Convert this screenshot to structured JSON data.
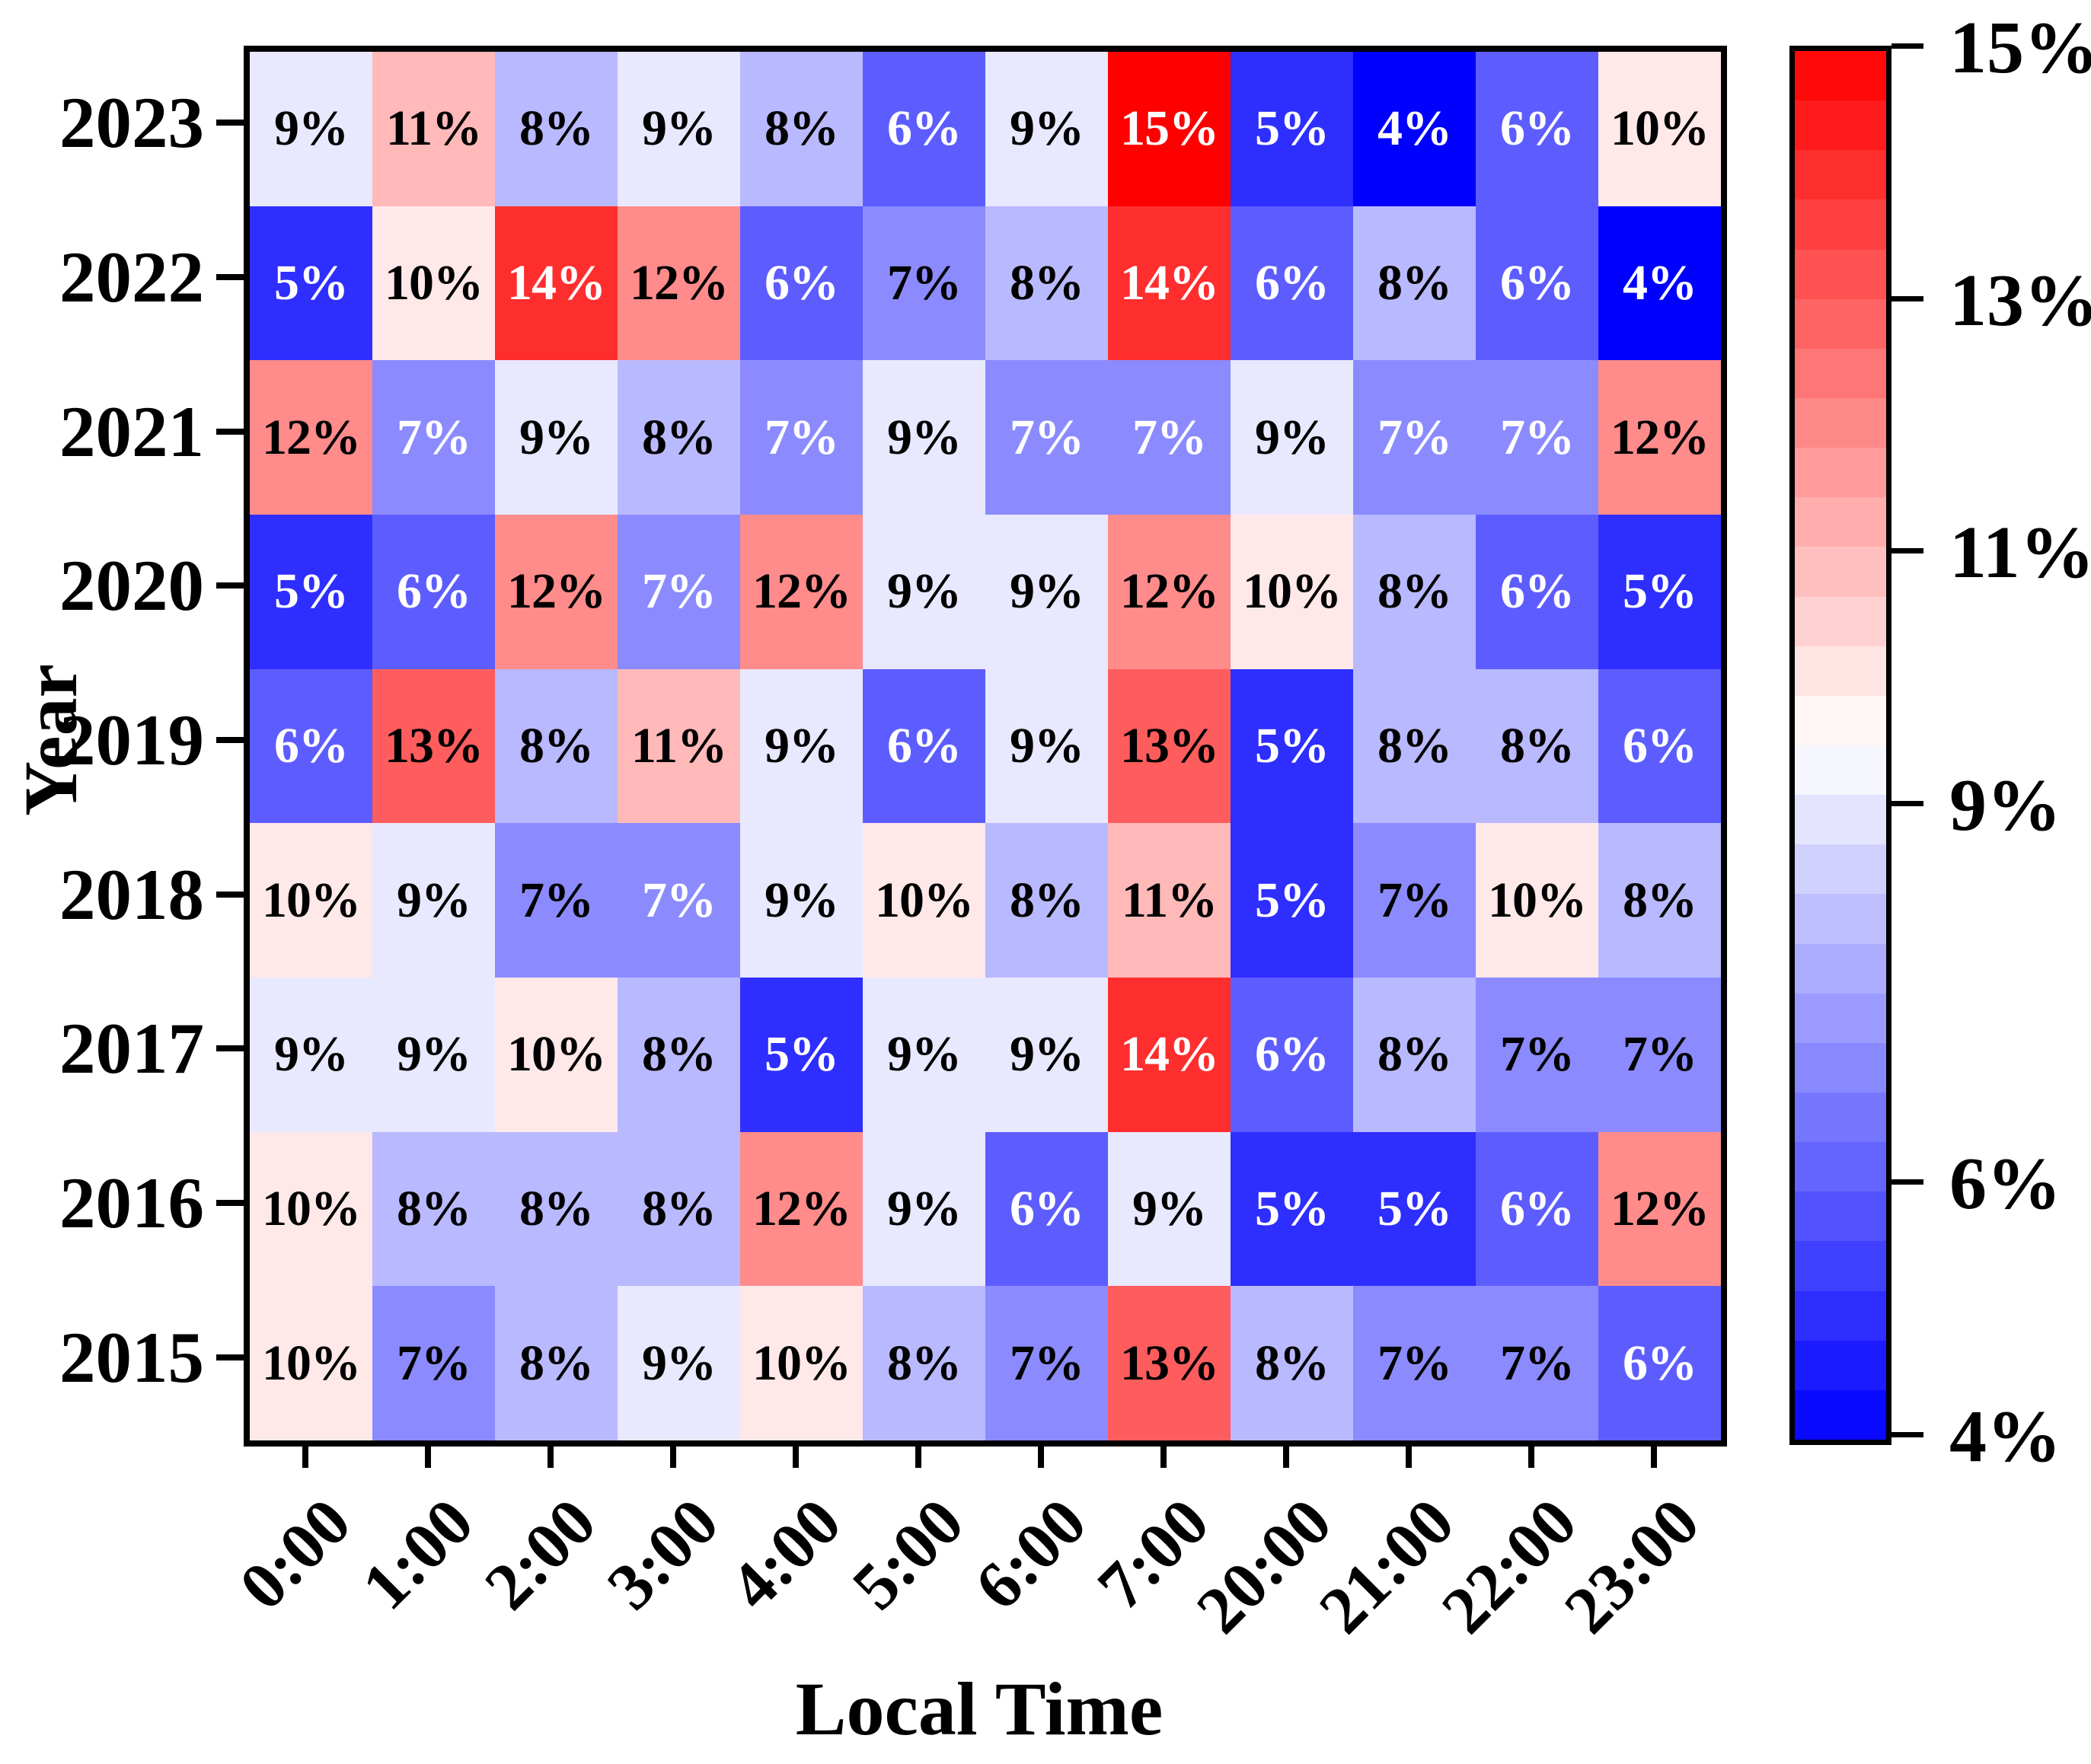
{
  "chart_data": {
    "type": "heatmap",
    "xlabel": "Local Time",
    "ylabel": "Year",
    "value_suffix": "%",
    "x_categories": [
      "0:00",
      "1:00",
      "2:00",
      "3:00",
      "4:00",
      "5:00",
      "6:00",
      "7:00",
      "20:00",
      "21:00",
      "22:00",
      "23:00"
    ],
    "y_categories": [
      "2023",
      "2022",
      "2021",
      "2020",
      "2019",
      "2018",
      "2017",
      "2016",
      "2015"
    ],
    "values": [
      [
        9,
        11,
        8,
        9,
        8,
        6,
        9,
        15,
        5,
        4,
        6,
        10
      ],
      [
        5,
        10,
        14,
        12,
        6,
        7,
        8,
        14,
        6,
        8,
        6,
        4
      ],
      [
        12,
        7,
        9,
        8,
        7,
        9,
        7,
        7,
        9,
        7,
        7,
        12
      ],
      [
        5,
        6,
        12,
        7,
        12,
        9,
        9,
        12,
        10,
        8,
        6,
        5
      ],
      [
        6,
        13,
        8,
        11,
        9,
        6,
        9,
        13,
        5,
        8,
        8,
        6
      ],
      [
        10,
        9,
        7,
        7,
        9,
        10,
        8,
        11,
        5,
        7,
        10,
        8
      ],
      [
        9,
        9,
        10,
        8,
        5,
        9,
        9,
        14,
        6,
        8,
        7,
        7
      ],
      [
        10,
        8,
        8,
        8,
        12,
        9,
        6,
        9,
        5,
        5,
        6,
        12
      ],
      [
        10,
        7,
        8,
        9,
        10,
        8,
        7,
        13,
        8,
        7,
        7,
        6
      ]
    ],
    "annotation_text_colors": [
      [
        "b",
        "b",
        "b",
        "b",
        "b",
        "w",
        "b",
        "w",
        "w",
        "w",
        "w",
        "b"
      ],
      [
        "w",
        "b",
        "w",
        "b",
        "w",
        "b",
        "b",
        "w",
        "w",
        "b",
        "w",
        "w"
      ],
      [
        "b",
        "w",
        "b",
        "b",
        "w",
        "b",
        "w",
        "w",
        "b",
        "w",
        "w",
        "b"
      ],
      [
        "w",
        "w",
        "b",
        "w",
        "b",
        "b",
        "b",
        "b",
        "b",
        "b",
        "w",
        "w"
      ],
      [
        "w",
        "b",
        "b",
        "b",
        "b",
        "w",
        "b",
        "b",
        "w",
        "b",
        "b",
        "w"
      ],
      [
        "b",
        "b",
        "b",
        "w",
        "b",
        "b",
        "b",
        "b",
        "w",
        "b",
        "b",
        "b"
      ],
      [
        "b",
        "b",
        "b",
        "b",
        "w",
        "b",
        "b",
        "w",
        "w",
        "b",
        "b",
        "b"
      ],
      [
        "b",
        "b",
        "b",
        "b",
        "b",
        "b",
        "w",
        "b",
        "w",
        "w",
        "w",
        "b"
      ],
      [
        "b",
        "b",
        "b",
        "b",
        "b",
        "b",
        "b",
        "b",
        "b",
        "b",
        "b",
        "w"
      ]
    ],
    "colormap": {
      "name": "bwr",
      "low_color": "#0000FF",
      "mid_color": "#FFFFFF",
      "high_color": "#FF0000"
    },
    "colorbar": {
      "min": 4,
      "max": 15,
      "tick_values": [
        15,
        13,
        11,
        9,
        6,
        4
      ],
      "tick_labels": [
        "15%",
        "13%",
        "11%",
        "9%",
        "6%",
        "4%"
      ],
      "position": "right",
      "bands": 28
    },
    "legend": "none",
    "grid": "off",
    "annotation_colors_legend": {
      "w": "#FFFFFF",
      "b": "#000000"
    }
  }
}
